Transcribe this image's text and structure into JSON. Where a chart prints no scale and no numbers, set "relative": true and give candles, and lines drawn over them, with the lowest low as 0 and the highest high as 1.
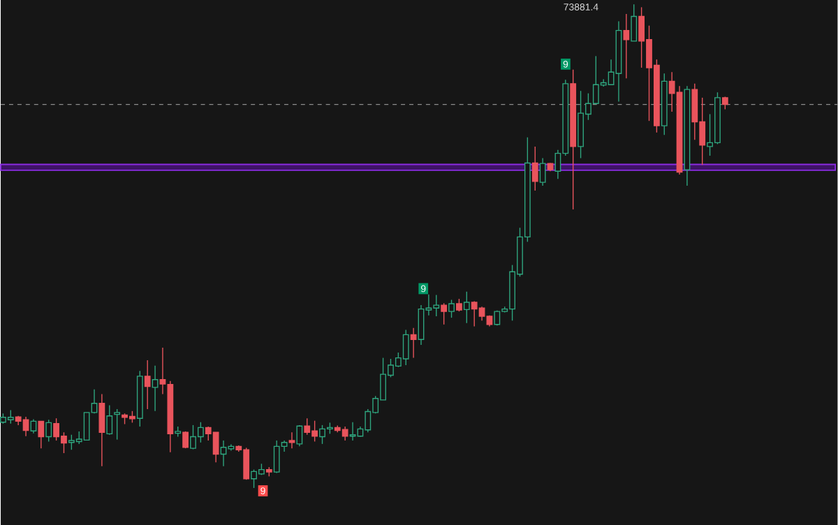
{
  "chart_data": {
    "type": "candlestick",
    "relative": true,
    "categories": [
      null,
      null,
      null,
      null,
      null,
      null,
      null,
      null,
      null,
      null,
      null,
      null,
      null,
      null,
      null,
      null,
      null,
      null,
      null,
      null,
      null,
      null,
      null,
      null,
      null,
      null,
      null,
      null,
      null,
      null,
      null,
      null,
      null,
      null,
      null,
      null,
      null,
      null,
      null,
      null,
      null,
      null,
      null,
      null,
      null,
      null,
      null,
      null,
      null,
      null,
      null,
      null,
      null,
      null,
      null,
      null,
      null,
      null,
      null,
      null,
      null,
      null,
      null,
      null,
      null,
      null,
      null,
      null,
      null,
      null,
      null,
      null,
      null,
      null,
      null,
      null,
      null,
      null,
      null,
      null,
      null,
      null,
      null,
      null,
      null,
      null,
      null,
      null,
      null,
      null,
      null,
      null,
      null,
      null,
      null,
      null
    ],
    "ohlc": [
      [
        0.136,
        0.154,
        0.133,
        0.146
      ],
      [
        0.141,
        0.161,
        0.133,
        0.146
      ],
      [
        0.147,
        0.149,
        0.13,
        0.138
      ],
      [
        0.141,
        0.147,
        0.107,
        0.119
      ],
      [
        0.118,
        0.142,
        0.113,
        0.138
      ],
      [
        0.138,
        0.138,
        0.082,
        0.106
      ],
      [
        0.106,
        0.141,
        0.096,
        0.135
      ],
      [
        0.133,
        0.144,
        0.098,
        0.106
      ],
      [
        0.107,
        0.115,
        0.072,
        0.093
      ],
      [
        0.094,
        0.11,
        0.079,
        0.098
      ],
      [
        0.096,
        0.117,
        0.091,
        0.101
      ],
      [
        0.099,
        0.156,
        0.098,
        0.156
      ],
      [
        0.156,
        0.204,
        0.154,
        0.175
      ],
      [
        0.175,
        0.194,
        0.045,
        0.115
      ],
      [
        0.112,
        0.171,
        0.11,
        0.149
      ],
      [
        0.152,
        0.163,
        0.1,
        0.156
      ],
      [
        0.151,
        0.154,
        0.132,
        0.146
      ],
      [
        0.148,
        0.159,
        0.135,
        0.143
      ],
      [
        0.144,
        0.242,
        0.127,
        0.231
      ],
      [
        0.231,
        0.264,
        0.163,
        0.21
      ],
      [
        0.208,
        0.253,
        0.159,
        0.224
      ],
      [
        0.224,
        0.29,
        0.194,
        0.215
      ],
      [
        0.214,
        0.221,
        0.074,
        0.112
      ],
      [
        0.113,
        0.127,
        0.106,
        0.117
      ],
      [
        0.115,
        0.117,
        0.082,
        0.084
      ],
      [
        0.082,
        0.13,
        0.08,
        0.106
      ],
      [
        0.106,
        0.136,
        0.094,
        0.125
      ],
      [
        0.125,
        0.127,
        0.098,
        0.112
      ],
      [
        0.115,
        0.115,
        0.053,
        0.07
      ],
      [
        0.07,
        0.098,
        0.045,
        0.084
      ],
      [
        0.081,
        0.09,
        0.077,
        0.086
      ],
      [
        0.086,
        0.088,
        0.075,
        0.079
      ],
      [
        0.079,
        0.083,
        0.017,
        0.019
      ],
      [
        0.019,
        0.038,
        0,
        0.034
      ],
      [
        0.029,
        0.05,
        0.027,
        0.038
      ],
      [
        0.038,
        0.043,
        0.024,
        0.033
      ],
      [
        0.033,
        0.098,
        0.031,
        0.086
      ],
      [
        0.086,
        0.098,
        0.075,
        0.094
      ],
      [
        0.098,
        0.115,
        0.082,
        0.094
      ],
      [
        0.091,
        0.13,
        0.086,
        0.128
      ],
      [
        0.128,
        0.144,
        0.11,
        0.115
      ],
      [
        0.118,
        0.139,
        0.096,
        0.107
      ],
      [
        0.106,
        0.13,
        0.091,
        0.122
      ],
      [
        0.122,
        0.135,
        0.112,
        0.125
      ],
      [
        0.125,
        0.129,
        0.115,
        0.119
      ],
      [
        0.121,
        0.127,
        0.098,
        0.107
      ],
      [
        0.107,
        0.136,
        0.098,
        0.11
      ],
      [
        0.107,
        0.127,
        0.106,
        0.122
      ],
      [
        0.12,
        0.163,
        0.115,
        0.158
      ],
      [
        0.156,
        0.19,
        0.154,
        0.185
      ],
      [
        0.182,
        0.269,
        0.182,
        0.235
      ],
      [
        0.233,
        0.267,
        0.229,
        0.254
      ],
      [
        0.252,
        0.28,
        0.25,
        0.269
      ],
      [
        0.267,
        0.327,
        0.254,
        0.317
      ],
      [
        0.317,
        0.331,
        0.269,
        0.307
      ],
      [
        0.307,
        0.378,
        0.296,
        0.37
      ],
      [
        0.368,
        0.4,
        0.357,
        0.372
      ],
      [
        0.372,
        0.399,
        0.355,
        0.378
      ],
      [
        0.378,
        0.382,
        0.338,
        0.365
      ],
      [
        0.365,
        0.389,
        0.352,
        0.381
      ],
      [
        0.381,
        0.391,
        0.365,
        0.368
      ],
      [
        0.369,
        0.406,
        0.341,
        0.384
      ],
      [
        0.384,
        0.386,
        0.334,
        0.37
      ],
      [
        0.372,
        0.375,
        0.346,
        0.355
      ],
      [
        0.355,
        0.357,
        0.334,
        0.338
      ],
      [
        0.338,
        0.367,
        0.336,
        0.365
      ],
      [
        0.365,
        0.375,
        0.363,
        0.37
      ],
      [
        0.37,
        0.461,
        0.346,
        0.447
      ],
      [
        0.442,
        0.538,
        0.437,
        0.519
      ],
      [
        0.519,
        0.725,
        0.509,
        0.672
      ],
      [
        0.672,
        0.706,
        0.615,
        0.634
      ],
      [
        0.632,
        0.682,
        0.625,
        0.671
      ],
      [
        0.671,
        0.672,
        0.655,
        0.658
      ],
      [
        0.655,
        0.699,
        0.639,
        0.692
      ],
      [
        0.692,
        0.844,
        0.687,
        0.836
      ],
      [
        0.836,
        0.865,
        0.576,
        0.706
      ],
      [
        0.706,
        0.821,
        0.682,
        0.775
      ],
      [
        0.773,
        0.816,
        0.761,
        0.795
      ],
      [
        0.795,
        0.893,
        0.793,
        0.834
      ],
      [
        0.833,
        0.845,
        0.83,
        0.838
      ],
      [
        0.834,
        0.886,
        0.833,
        0.86
      ],
      [
        0.857,
        0.965,
        0.799,
        0.946
      ],
      [
        0.946,
        0.98,
        0.847,
        0.927
      ],
      [
        0.924,
        1,
        0.924,
        0.975
      ],
      [
        0.975,
        0.994,
        0.869,
        0.924
      ],
      [
        0.927,
        0.956,
        0.759,
        0.869
      ],
      [
        0.874,
        0.886,
        0.735,
        0.749
      ],
      [
        0.749,
        0.857,
        0.73,
        0.841
      ],
      [
        0.841,
        0.86,
        0.778,
        0.816
      ],
      [
        0.818,
        0.831,
        0.648,
        0.653
      ],
      [
        0.658,
        0.831,
        0.625,
        0.824
      ],
      [
        0.824,
        0.836,
        0.72,
        0.757
      ],
      [
        0.757,
        0.807,
        0.668,
        0.709
      ],
      [
        0.706,
        0.773,
        0.687,
        0.714
      ],
      [
        0.714,
        0.818,
        0.711,
        0.807
      ],
      [
        0.807,
        0.809,
        0.783,
        0.793
      ]
    ],
    "colors": [
      "#2fa67f",
      "#2fa67f",
      "#e9545c",
      "#e9545c",
      "#2fa67f",
      "#e9545c",
      "#2fa67f",
      "#e9545c",
      "#e9545c",
      "#2fa67f",
      "#2fa67f",
      "#2fa67f",
      "#2fa67f",
      "#e9545c",
      "#2fa67f",
      "#2fa67f",
      "#e9545c",
      "#e9545c",
      "#2fa67f",
      "#e9545c",
      "#2fa67f",
      "#e9545c",
      "#e9545c",
      "#2fa67f",
      "#e9545c",
      "#2fa67f",
      "#2fa67f",
      "#e9545c",
      "#e9545c",
      "#2fa67f",
      "#2fa67f",
      "#e9545c",
      "#e9545c",
      "#2fa67f",
      "#2fa67f",
      "#e9545c",
      "#2fa67f",
      "#2fa67f",
      "#e9545c",
      "#2fa67f",
      "#e9545c",
      "#e9545c",
      "#2fa67f",
      "#2fa67f",
      "#e9545c",
      "#e9545c",
      "#2fa67f",
      "#2fa67f",
      "#2fa67f",
      "#2fa67f",
      "#2fa67f",
      "#2fa67f",
      "#2fa67f",
      "#2fa67f",
      "#e9545c",
      "#2fa67f",
      "#2fa67f",
      "#2fa67f",
      "#e9545c",
      "#2fa67f",
      "#e9545c",
      "#2fa67f",
      "#e9545c",
      "#e9545c",
      "#e9545c",
      "#2fa67f",
      "#2fa67f",
      "#2fa67f",
      "#2fa67f",
      "#2fa67f",
      "#e9545c",
      "#2fa67f",
      "#e9545c",
      "#2fa67f",
      "#2fa67f",
      "#e9545c",
      "#2fa67f",
      "#2fa67f",
      "#2fa67f",
      "#2fa67f",
      "#2fa67f",
      "#2fa67f",
      "#e9545c",
      "#2fa67f",
      "#e9545c",
      "#e9545c",
      "#e9545c",
      "#2fa67f",
      "#e9545c",
      "#e9545c",
      "#2fa67f",
      "#e9545c",
      "#e9545c",
      "#2fa67f",
      "#2fa67f",
      "#e9545c"
    ],
    "annotations": [
      "73881.4",
      "9",
      "9",
      "9"
    ],
    "ref_lines": [
      {
        "axis": "y",
        "value": 0.793,
        "color": "#8c8c8c",
        "line_style": "dashed"
      }
    ],
    "bands": [
      {
        "axis": "y",
        "from": 0.657,
        "to": 0.669,
        "color": "#8a2be2"
      }
    ]
  }
}
